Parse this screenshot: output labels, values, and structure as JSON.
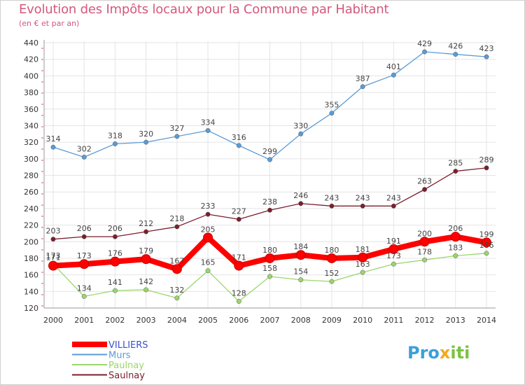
{
  "chart_data": {
    "type": "line",
    "title": "Evolution des Impôts locaux pour la Commune par Habitant",
    "subtitle": "(en € et par an)",
    "xlabel": "",
    "ylabel": "",
    "x": [
      "2000",
      "2001",
      "2002",
      "2003",
      "2004",
      "2005",
      "2006",
      "2007",
      "2008",
      "2009",
      "2010",
      "2011",
      "2012",
      "2013",
      "2014"
    ],
    "ylim": [
      120,
      440
    ],
    "yticks": [
      120,
      140,
      160,
      180,
      200,
      220,
      240,
      260,
      280,
      300,
      320,
      340,
      360,
      380,
      400,
      420,
      440
    ],
    "grid": true,
    "legend_position": "bottom-left",
    "series": [
      {
        "name": "Murs",
        "color": "#5b9bd5",
        "values": [
          314,
          302,
          318,
          320,
          327,
          334,
          316,
          299,
          330,
          355,
          387,
          401,
          429,
          426,
          423
        ]
      },
      {
        "name": "Saulnay",
        "color": "#7a1f2b",
        "values": [
          203,
          206,
          206,
          212,
          218,
          233,
          227,
          238,
          246,
          243,
          243,
          243,
          263,
          285,
          289
        ]
      },
      {
        "name": "Paulnay",
        "color": "#9bd66b",
        "values": [
          173,
          134,
          141,
          142,
          132,
          165,
          128,
          158,
          154,
          152,
          163,
          173,
          178,
          183,
          186
        ]
      },
      {
        "name": "VILLIERS",
        "color": "#ff0000",
        "values": [
          171,
          173,
          176,
          179,
          167,
          205,
          171,
          180,
          184,
          180,
          181,
          191,
          200,
          206,
          199
        ]
      }
    ],
    "legend_order": [
      "VILLIERS",
      "Murs",
      "Paulnay",
      "Saulnay"
    ]
  },
  "logo": {
    "parts": [
      "Pro",
      "x",
      "iti"
    ],
    "colors": [
      "#3aa0d8",
      "#f2a81d",
      "#7cc242"
    ]
  }
}
